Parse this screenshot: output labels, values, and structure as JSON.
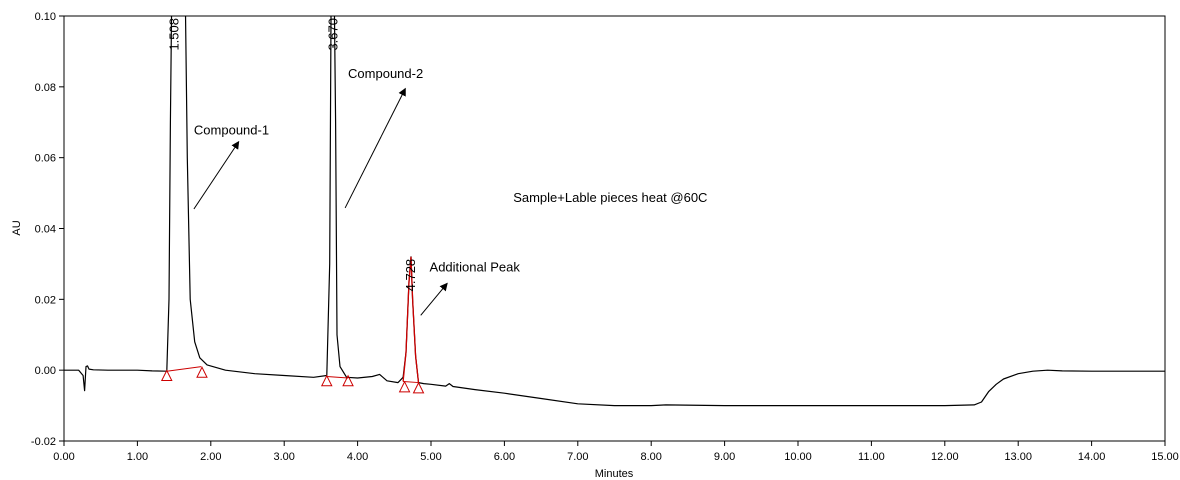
{
  "chart_data": {
    "type": "line",
    "xlabel": "Minutes",
    "ylabel": "AU",
    "xlim": [
      0,
      15
    ],
    "ylim": [
      -0.02,
      0.1
    ],
    "x_ticks": [
      "0.00",
      "1.00",
      "2.00",
      "3.00",
      "4.00",
      "5.00",
      "6.00",
      "7.00",
      "8.00",
      "9.00",
      "10.00",
      "11.00",
      "12.00",
      "13.00",
      "14.00",
      "15.00"
    ],
    "y_ticks": [
      "-0.02",
      "0.00",
      "0.02",
      "0.04",
      "0.06",
      "0.08",
      "0.10"
    ],
    "grid": false,
    "trace_color": "#000000",
    "integration_color": "#cc0000",
    "series": [
      {
        "x": [
          0.0,
          0.2,
          0.26,
          0.28,
          0.3,
          0.32,
          0.34,
          0.4,
          0.6,
          0.8,
          1.0,
          1.2,
          1.4,
          1.43,
          1.45,
          1.47,
          1.49,
          1.51,
          1.55,
          1.6,
          1.65,
          1.68,
          1.72,
          1.78,
          1.85,
          1.95,
          2.2,
          2.6,
          3.0,
          3.4,
          3.58,
          3.62,
          3.64,
          3.66,
          3.67,
          3.68,
          3.7,
          3.72,
          3.76,
          3.85,
          4.0,
          4.2,
          4.3,
          4.4,
          4.55,
          4.62,
          4.66,
          4.7,
          4.728,
          4.75,
          4.79,
          4.83,
          4.9,
          5.0,
          5.2,
          5.25,
          5.3,
          5.6,
          6.0,
          6.5,
          7.0,
          7.5,
          8.0,
          8.2,
          9.0,
          10.0,
          11.0,
          12.0,
          12.4,
          12.5,
          12.6,
          12.7,
          12.8,
          13.0,
          13.2,
          13.4,
          13.6,
          14.0,
          14.5,
          15.0
        ],
        "y": [
          0.0,
          0.0,
          -0.0015,
          -0.0058,
          0.001,
          0.0012,
          0.0003,
          0.0001,
          0.0,
          0.0,
          0.0,
          -0.0002,
          -0.0003,
          0.02,
          0.07,
          0.11,
          0.11,
          0.11,
          0.11,
          0.11,
          0.11,
          0.06,
          0.02,
          0.008,
          0.0035,
          0.0015,
          0.0,
          -0.001,
          -0.0015,
          -0.002,
          -0.0015,
          0.03,
          0.11,
          0.11,
          0.11,
          0.11,
          0.07,
          0.01,
          0.001,
          -0.002,
          -0.0022,
          -0.0018,
          -0.0012,
          -0.003,
          -0.0035,
          -0.002,
          0.005,
          0.025,
          0.032,
          0.02,
          0.004,
          -0.0035,
          -0.0038,
          -0.004,
          -0.0045,
          -0.0038,
          -0.0046,
          -0.0055,
          -0.0065,
          -0.008,
          -0.0095,
          -0.01,
          -0.01,
          -0.0098,
          -0.01,
          -0.01,
          -0.01,
          -0.01,
          -0.0098,
          -0.009,
          -0.006,
          -0.004,
          -0.0025,
          -0.001,
          -0.0003,
          0.0,
          -0.0002,
          -0.0003,
          -0.0003,
          -0.0003
        ]
      }
    ],
    "highlight": {
      "x": [
        4.62,
        4.66,
        4.7,
        4.728,
        4.75,
        4.79,
        4.83
      ],
      "y": [
        -0.0032,
        0.005,
        0.025,
        0.032,
        0.02,
        0.004,
        -0.0035
      ]
    },
    "baselines": [
      [
        [
          1.4,
          -0.0003
        ],
        [
          1.87,
          0.001
        ]
      ],
      [
        [
          3.58,
          -0.0018
        ],
        [
          3.87,
          -0.0022
        ]
      ],
      [
        [
          4.62,
          -0.0032
        ],
        [
          4.83,
          -0.0035
        ]
      ]
    ],
    "markers": [
      {
        "x": 1.4,
        "y": -0.0015
      },
      {
        "x": 1.88,
        "y": -0.0006
      },
      {
        "x": 3.58,
        "y": -0.003
      },
      {
        "x": 3.87,
        "y": -0.003
      },
      {
        "x": 4.64,
        "y": -0.0047
      },
      {
        "x": 4.83,
        "y": -0.005
      }
    ],
    "peak_labels": [
      {
        "text": "1.508",
        "x": 1.508,
        "y": 0.1
      },
      {
        "text": "3.670",
        "x": 3.67,
        "y": 0.1
      },
      {
        "text": "4.728",
        "x": 4.728,
        "y": 0.032
      }
    ],
    "annotations": [
      {
        "text": "Compound-1",
        "x": 1.77,
        "y": 0.0665,
        "ax_from": [
          1.77,
          0.0455
        ],
        "ax_to": [
          2.38,
          0.0645
        ]
      },
      {
        "text": "Compound-2",
        "x": 3.87,
        "y": 0.0825,
        "ax_from": [
          3.83,
          0.0458
        ],
        "ax_to": [
          4.65,
          0.0795
        ]
      },
      {
        "text": "Additional Peak",
        "x": 4.98,
        "y": 0.0278,
        "ax_from": [
          4.86,
          0.0155
        ],
        "ax_to": [
          5.22,
          0.0245
        ]
      },
      {
        "text": "Sample+Lable pieces heat @60C",
        "x": 6.12,
        "y": 0.0475
      }
    ]
  }
}
